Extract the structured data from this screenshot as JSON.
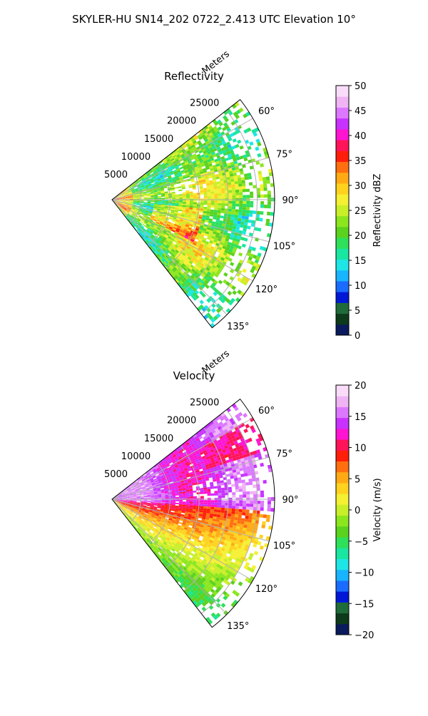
{
  "figure": {
    "suptitle": "SKYLER-HU  SN14_202  0722_2.413 UTC Elevation 10°"
  },
  "chart_data": [
    {
      "type": "heatmap",
      "projection": "polar-sector",
      "title": "Reflectivity",
      "range_label": "Meters",
      "range_ticks": [
        5000,
        10000,
        15000,
        20000,
        25000
      ],
      "range_tick_labels": [
        "5000",
        "10000",
        "15000",
        "20000",
        "25000"
      ],
      "rlim": [
        0,
        28000
      ],
      "azimuth_ticks": [
        60,
        75,
        90,
        105,
        120,
        135
      ],
      "azimuth_tick_labels": [
        "60°",
        "75°",
        "90°",
        "105°",
        "120°",
        "135°"
      ],
      "azimuth_range": [
        52,
        142
      ],
      "grid": true,
      "colorbar": {
        "label": "Reflectivity dBZ",
        "ticks": [
          0,
          5,
          10,
          15,
          20,
          25,
          30,
          35,
          40,
          45,
          50
        ],
        "tick_labels": [
          "0",
          "5",
          "10",
          "15",
          "20",
          "25",
          "30",
          "35",
          "40",
          "45",
          "50"
        ],
        "vmin": 0,
        "vmax": 50,
        "colors": [
          "#0a1a5c",
          "#0c3a1a",
          "#1f6b3a",
          "#0018d6",
          "#1a6cff",
          "#19b4ff",
          "#1ee6e6",
          "#19e6a0",
          "#2ee05a",
          "#5ad21e",
          "#8ce61e",
          "#c8ef28",
          "#f5f032",
          "#ffd21e",
          "#ffaa14",
          "#ff6e0f",
          "#ff1e0a",
          "#ff145a",
          "#ff14d2",
          "#c832ff",
          "#dc78ff",
          "#f0b4f5",
          "#fadcfa"
        ]
      },
      "field_summary": "Mostly 20–30 dBZ (green to yellow) across the sector, local 30–37 dBZ cores (orange/red) near azimuth 100–115° at 8–15 km and near the origin; sparse 15–20 dBZ gaps around 75–80°."
    },
    {
      "type": "heatmap",
      "projection": "polar-sector",
      "title": "Velocity",
      "range_label": "Meters",
      "range_ticks": [
        5000,
        10000,
        15000,
        20000,
        25000
      ],
      "range_tick_labels": [
        "5000",
        "10000",
        "15000",
        "20000",
        "25000"
      ],
      "rlim": [
        0,
        28000
      ],
      "azimuth_ticks": [
        60,
        75,
        90,
        105,
        120,
        135
      ],
      "azimuth_tick_labels": [
        "60°",
        "75°",
        "90°",
        "105°",
        "120°",
        "135°"
      ],
      "azimuth_range": [
        52,
        142
      ],
      "grid": true,
      "colorbar": {
        "label": "Velocity (m/s)",
        "ticks": [
          -20,
          -15,
          -10,
          -5,
          0,
          5,
          10,
          15,
          20
        ],
        "tick_labels": [
          "−20",
          "−15",
          "−10",
          "−5",
          "0",
          "5",
          "10",
          "15",
          "20"
        ],
        "vmin": -20,
        "vmax": 20,
        "colors": [
          "#0a1a5c",
          "#0c3a1a",
          "#1f6b3a",
          "#0018d6",
          "#1a6cff",
          "#19b4ff",
          "#1ee6e6",
          "#19e6a0",
          "#2ee05a",
          "#5ad21e",
          "#8ce61e",
          "#c8ef28",
          "#f5f032",
          "#ffd21e",
          "#ffaa14",
          "#ff6e0f",
          "#ff1e0a",
          "#ff145a",
          "#ff14d2",
          "#c832ff",
          "#dc78ff",
          "#f0b4f5",
          "#fadcfa"
        ]
      },
      "field_summary": "Northern part (azimuth 55–95°) mostly 12–17 m/s (magenta/purple); 90–110° around 10–13 m/s (red/magenta); southern part 115–140° decreasing to 0–6 m/s (yellow/orange) with some −3 to 0 m/s near 135°."
    }
  ]
}
